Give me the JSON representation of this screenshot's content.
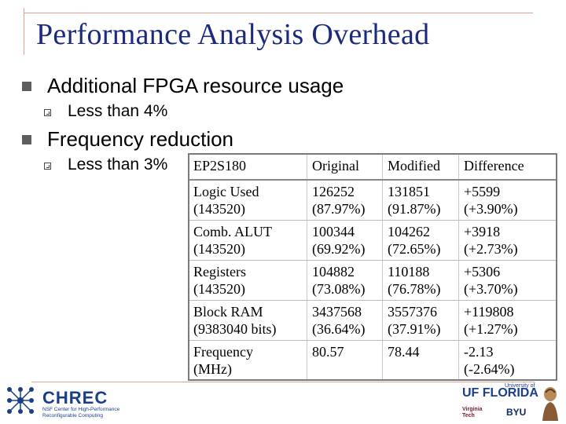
{
  "title": "Performance Analysis Overhead",
  "bullets": [
    {
      "text": "Additional FPGA resource usage",
      "sub": [
        "Less than 4%"
      ]
    },
    {
      "text": "Frequency reduction",
      "sub": [
        "Less than 3%"
      ]
    }
  ],
  "table": {
    "headers": [
      "EP2S180",
      "Original",
      "Modified",
      "Difference"
    ],
    "rows": [
      {
        "label": [
          "Logic Used",
          "(143520)"
        ],
        "original": [
          "126252",
          "(87.97%)"
        ],
        "modified": [
          "131851",
          "(91.87%)"
        ],
        "difference": [
          "+5599",
          "(+3.90%)"
        ]
      },
      {
        "label": [
          "Comb. ALUT",
          "(143520)"
        ],
        "original": [
          "100344",
          "(69.92%)"
        ],
        "modified": [
          "104262",
          "(72.65%)"
        ],
        "difference": [
          "+3918",
          "(+2.73%)"
        ]
      },
      {
        "label": [
          "Registers",
          "(143520)"
        ],
        "original": [
          "104882",
          "(73.08%)"
        ],
        "modified": [
          "110188",
          "(76.78%)"
        ],
        "difference": [
          "+5306",
          "(+3.70%)"
        ]
      },
      {
        "label": [
          "Block RAM",
          "(9383040 bits)"
        ],
        "original": [
          "3437568",
          "(36.64%)"
        ],
        "modified": [
          "3557376",
          "(37.91%)"
        ],
        "difference": [
          "+119808",
          "(+1.27%)"
        ]
      },
      {
        "label": [
          "Frequency",
          "(MHz)"
        ],
        "original": [
          "80.57",
          ""
        ],
        "modified": [
          "78.44",
          ""
        ],
        "difference": [
          "-2.13",
          "(-2.64%)"
        ]
      }
    ]
  },
  "logos": {
    "chrec_name": "CHREC",
    "chrec_sub": "NSF Center for High-Performance Reconfigurable Computing",
    "uf_text": "UF FLORIDA",
    "uf_of": "University of",
    "vt_text": "Virginia Tech",
    "byu_text": "BYU"
  },
  "colors": {
    "title": "#1b2a7c",
    "accent_rule": "#d9a393",
    "bullet": "#5e5e5e"
  }
}
